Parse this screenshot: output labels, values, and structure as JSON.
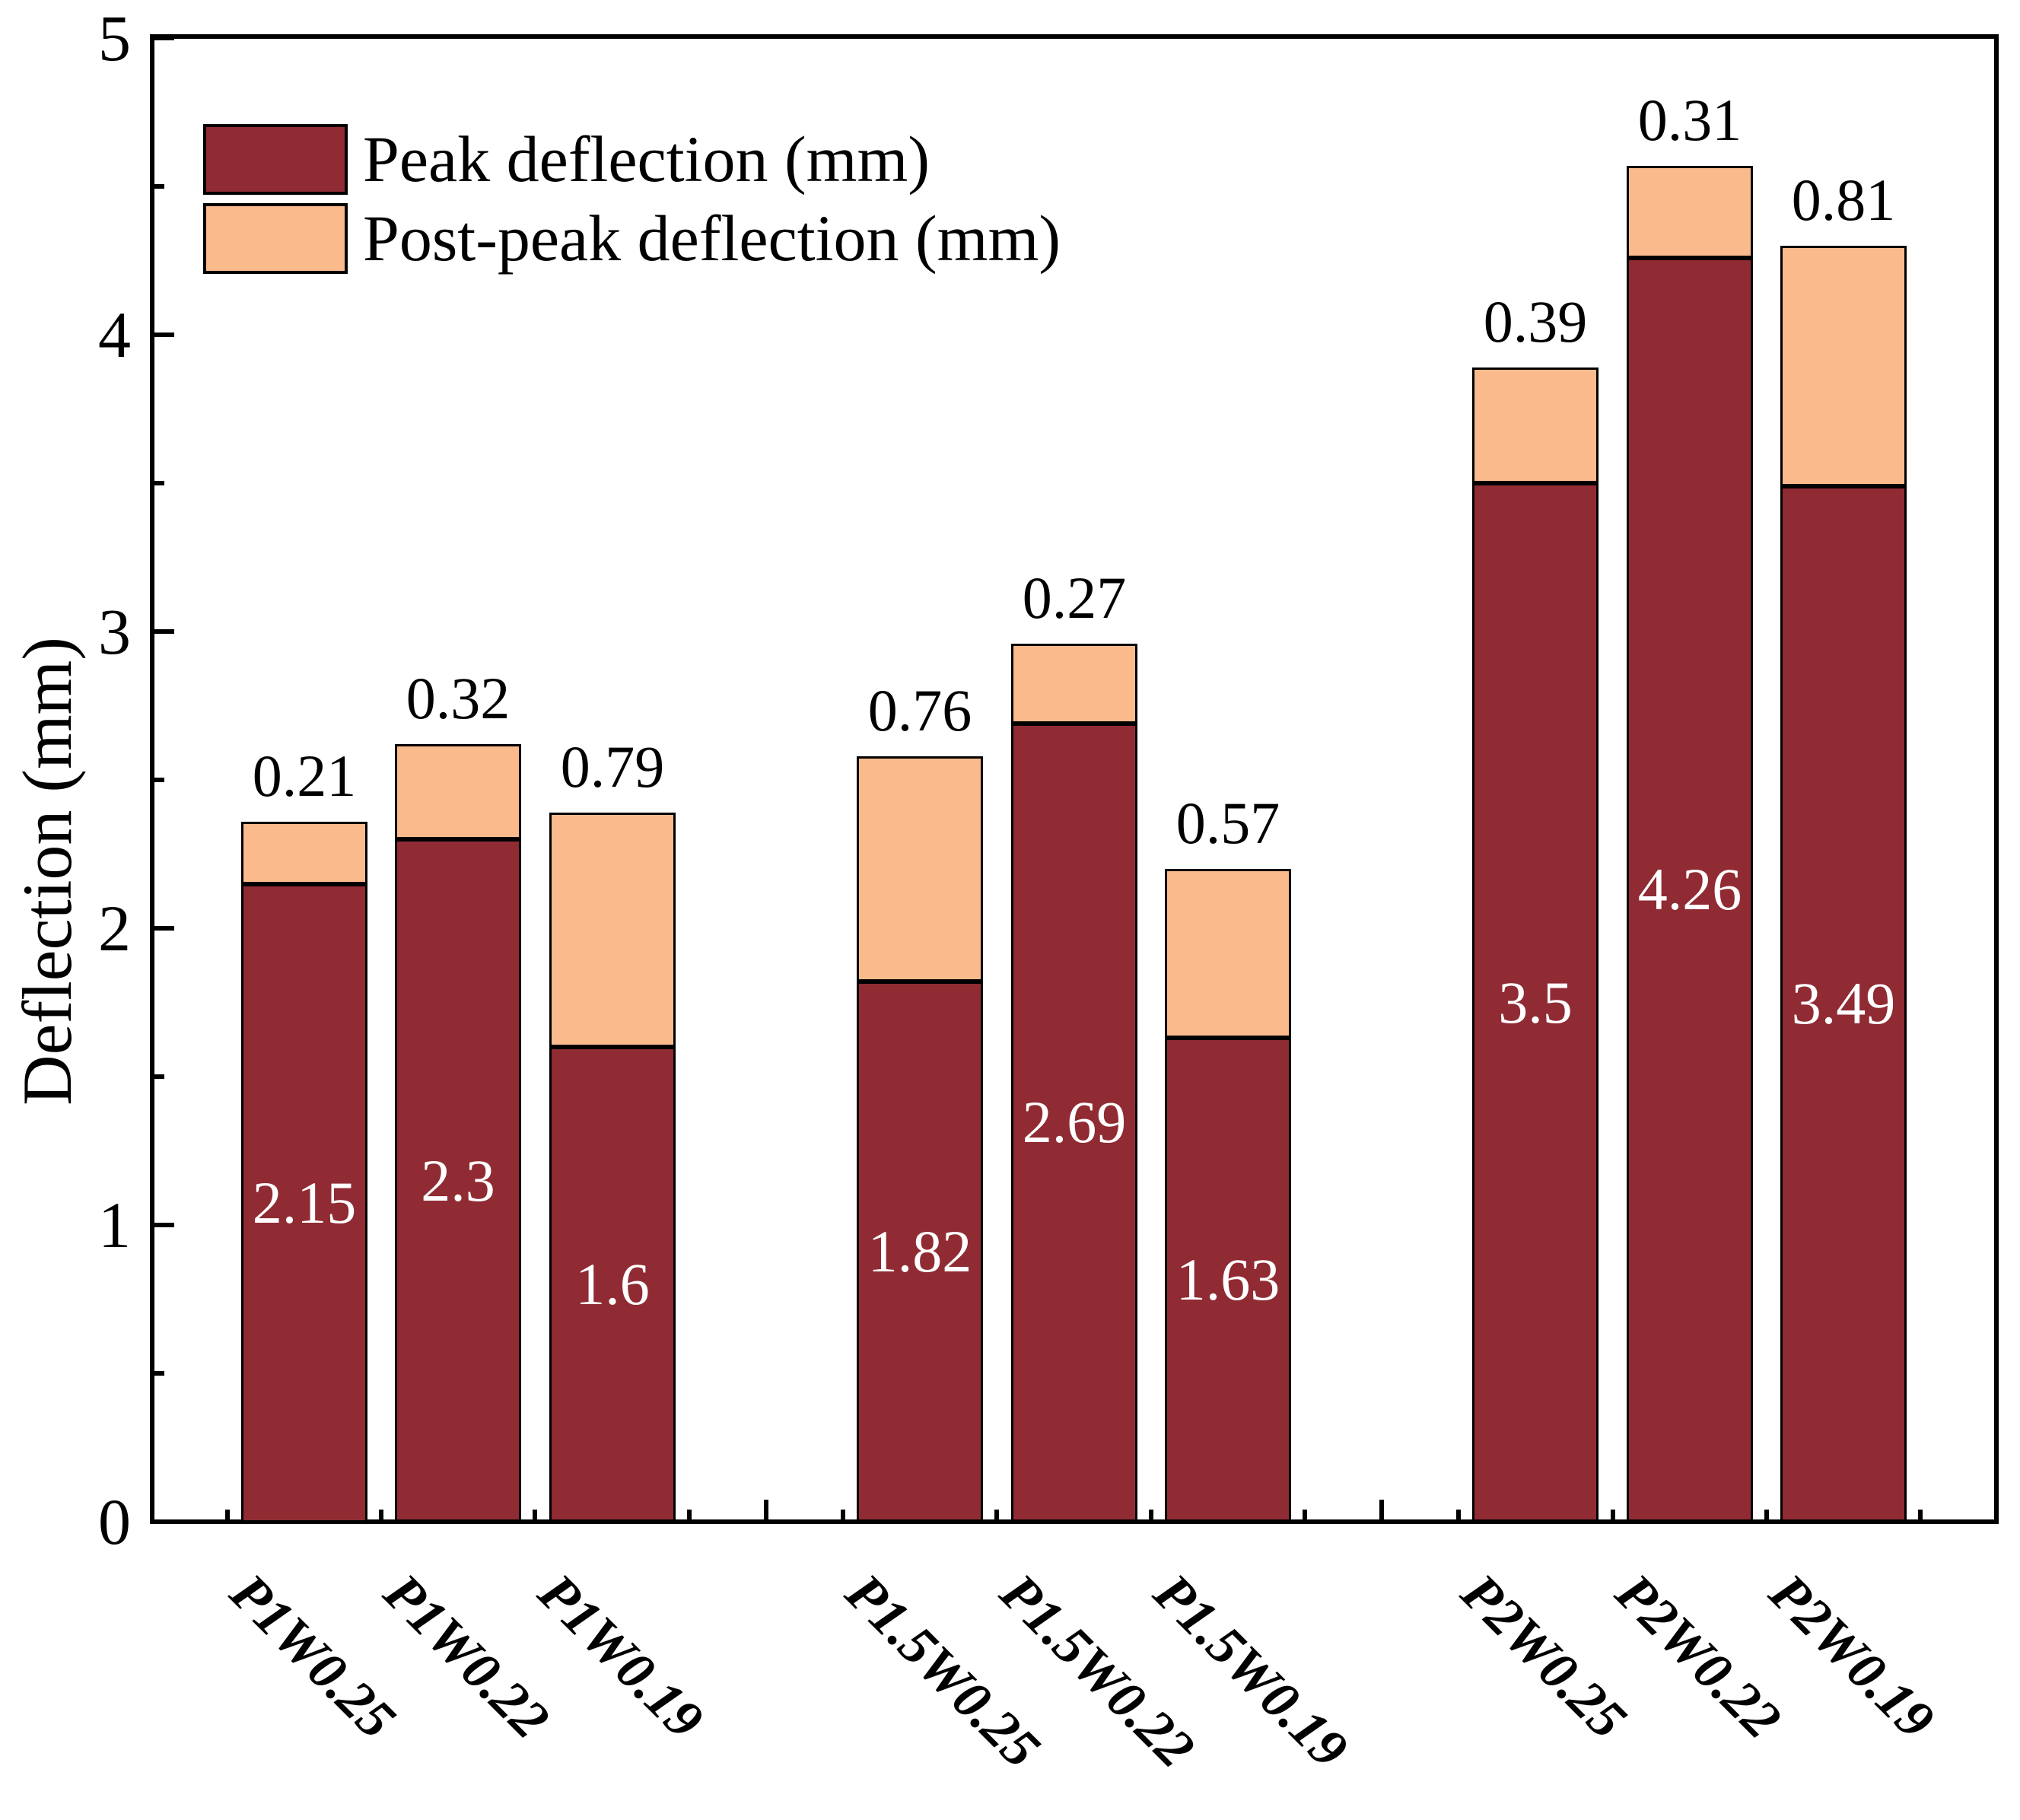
{
  "figure": {
    "background_color": "#ffffff",
    "frame_color": "#000000"
  },
  "chart_data": {
    "type": "bar",
    "stacked": true,
    "title": "",
    "xlabel": "",
    "ylabel": "Deflection (mm)",
    "ylim": [
      0,
      5
    ],
    "yticks": [
      0,
      1,
      2,
      3,
      4,
      5
    ],
    "y_minor_step": 0.5,
    "grid": "off",
    "legend_position": "top-left-inside",
    "categories": [
      "P1W0.25",
      "P1W0.22",
      "P1W0.19",
      "P1.5W0.25",
      "P1.5W0.22",
      "P1.5W0.19",
      "P2W0.25",
      "P2W0.22",
      "P2W0.19"
    ],
    "series": [
      {
        "name": "Peak deflection (mm)",
        "color": "#902B33",
        "values": [
          2.15,
          2.3,
          1.6,
          1.82,
          2.69,
          1.63,
          3.5,
          4.26,
          3.49
        ],
        "value_labels": [
          "2.15",
          "2.3",
          "1.6",
          "1.82",
          "2.69",
          "1.63",
          "3.5",
          "4.26",
          "3.49"
        ],
        "label_placement": "inside-center",
        "label_color": "#ffffff"
      },
      {
        "name": "Post-peak deflection (mm)",
        "color": "#FBBA8C",
        "values": [
          0.21,
          0.32,
          0.79,
          0.76,
          0.27,
          0.57,
          0.39,
          0.31,
          0.81
        ],
        "value_labels": [
          "0.21",
          "0.32",
          "0.79",
          "0.76",
          "0.27",
          "0.57",
          "0.39",
          "0.31",
          "0.81"
        ],
        "label_placement": "above-stack",
        "label_color": "#000000"
      }
    ],
    "totals": [
      2.36,
      2.62,
      2.39,
      2.58,
      2.96,
      2.2,
      3.89,
      4.57,
      4.3
    ]
  }
}
